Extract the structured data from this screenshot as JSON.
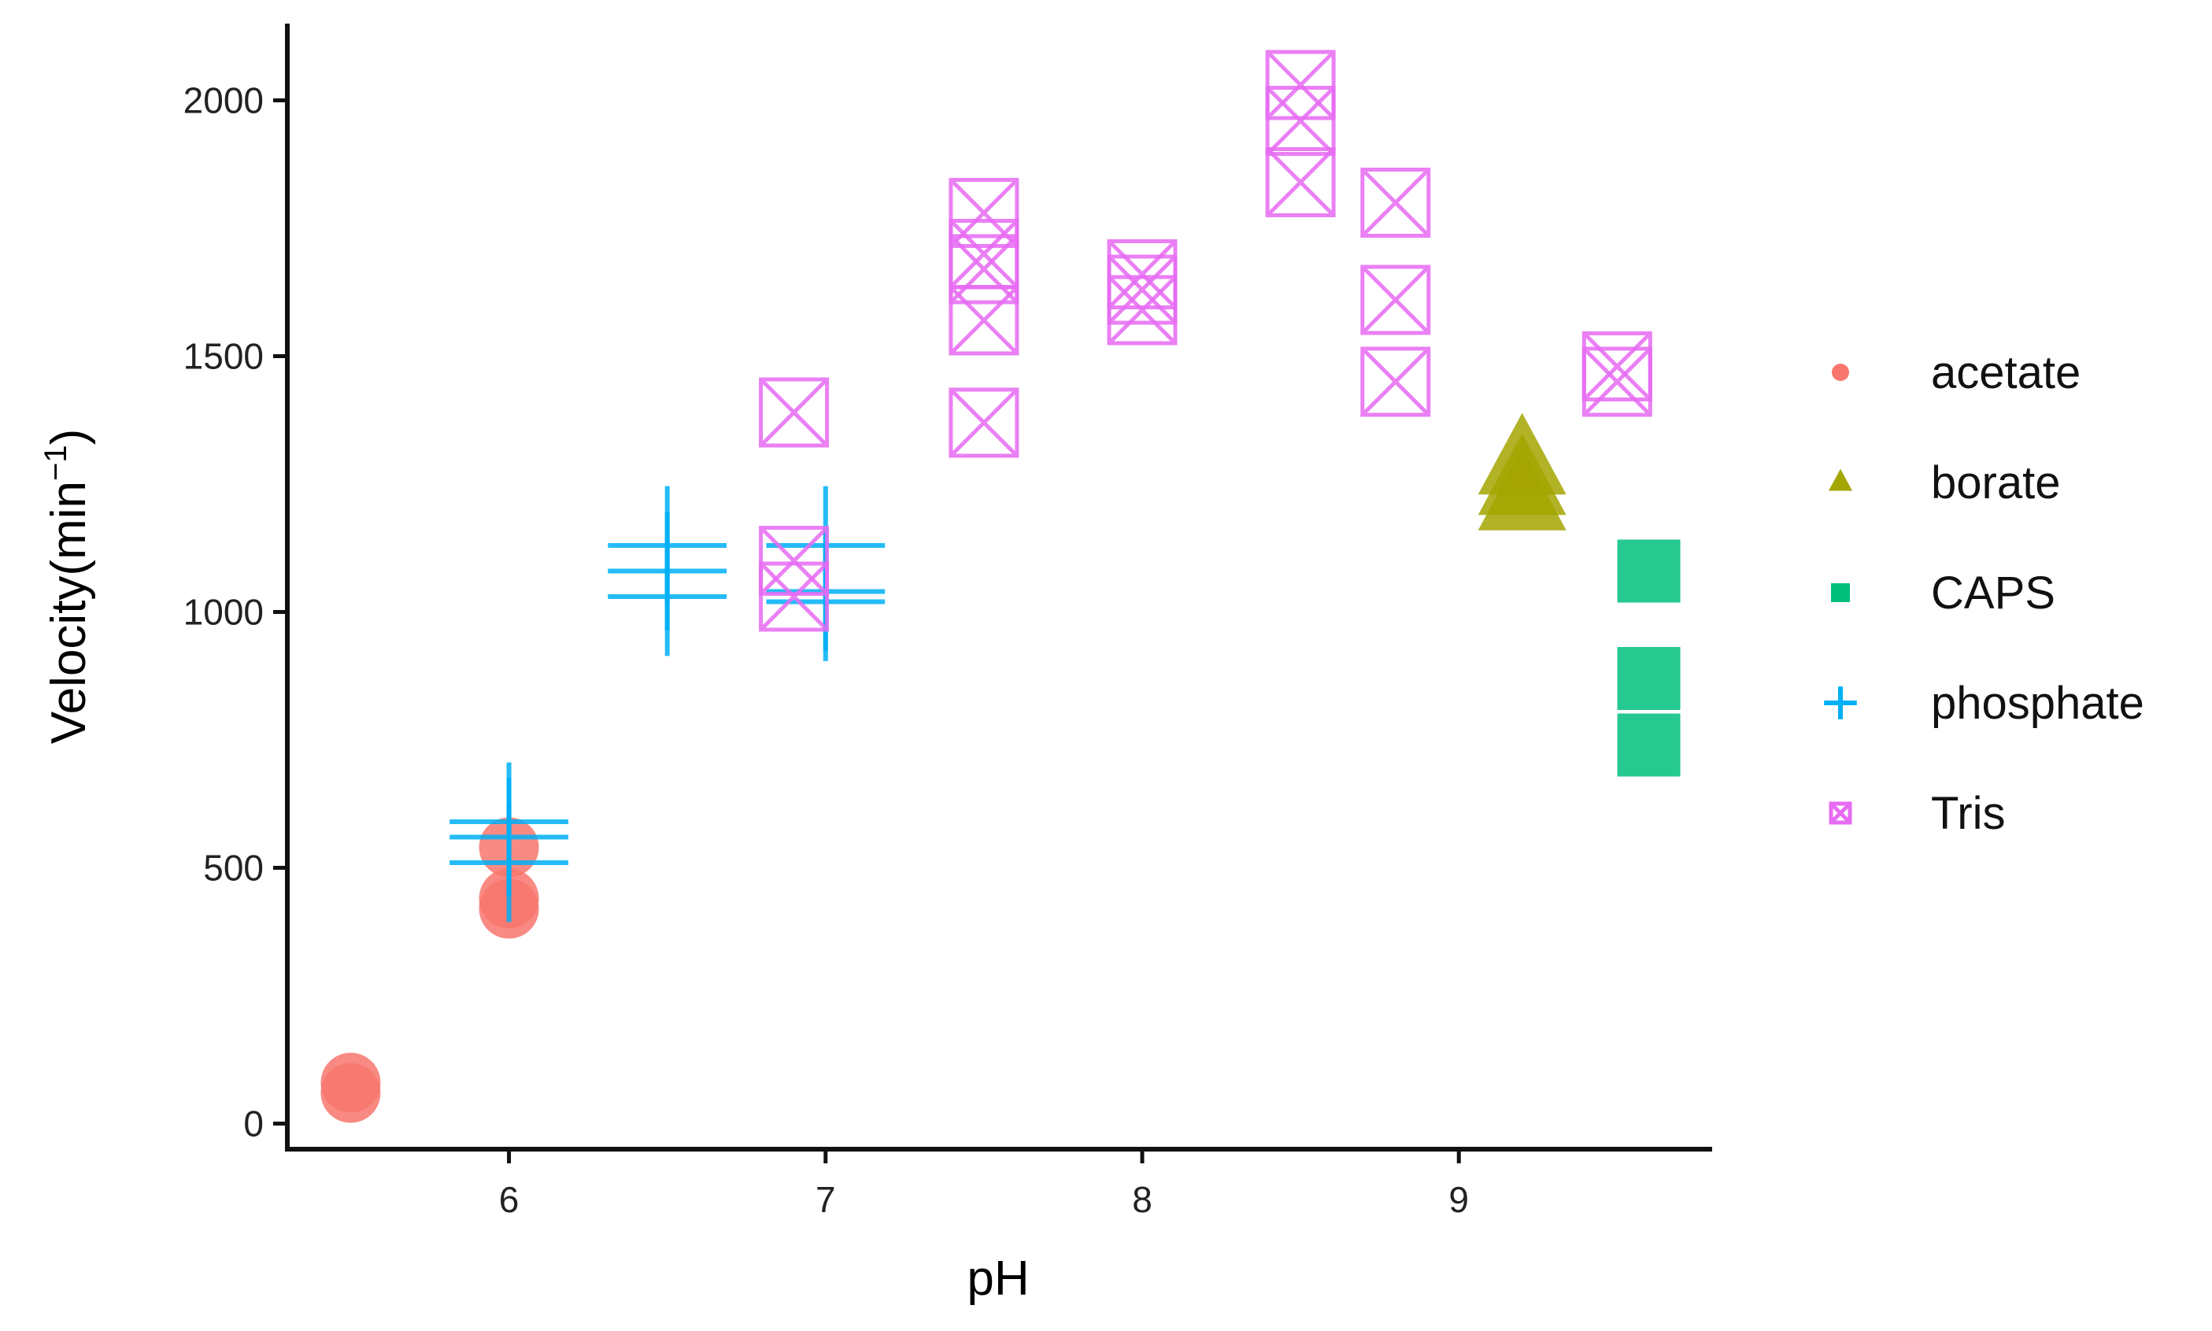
{
  "chart_data": {
    "type": "scatter",
    "xlabel": "pH",
    "ylabel": "Velocity",
    "ylabel_unit": "(min",
    "ylabel_sup": "−1",
    "ylabel_close": ")",
    "xlim": [
      5.3,
      9.8
    ],
    "ylim": [
      -50,
      2150
    ],
    "xticks": [
      6,
      7,
      8,
      9
    ],
    "yticks": [
      0,
      500,
      1000,
      1500,
      2000
    ],
    "grid": false,
    "legend_position": "right",
    "series": [
      {
        "name": "acetate",
        "marker": "circle",
        "color": "#F8766D",
        "points": [
          [
            5.5,
            80
          ],
          [
            5.5,
            60
          ],
          [
            6.0,
            540
          ],
          [
            6.0,
            440
          ],
          [
            6.0,
            420
          ]
        ]
      },
      {
        "name": "borate",
        "marker": "triangle",
        "color": "#A3A500",
        "points": [
          [
            9.2,
            1290
          ],
          [
            9.2,
            1250
          ],
          [
            9.2,
            1220
          ]
        ]
      },
      {
        "name": "CAPS",
        "marker": "square",
        "color": "#00BF7D",
        "points": [
          [
            9.6,
            1080
          ],
          [
            9.6,
            870
          ],
          [
            9.6,
            740
          ]
        ]
      },
      {
        "name": "phosphate",
        "marker": "plus",
        "color": "#00B0F6",
        "points": [
          [
            6.0,
            590
          ],
          [
            6.0,
            560
          ],
          [
            6.0,
            510
          ],
          [
            6.5,
            1130
          ],
          [
            6.5,
            1080
          ],
          [
            6.5,
            1030
          ],
          [
            7.0,
            1130
          ],
          [
            7.0,
            1040
          ],
          [
            7.0,
            1020
          ]
        ]
      },
      {
        "name": "Tris",
        "marker": "boxcross",
        "color": "#E76BF3",
        "points": [
          [
            6.9,
            1390
          ],
          [
            6.9,
            1100
          ],
          [
            6.9,
            1030
          ],
          [
            7.5,
            1780
          ],
          [
            7.5,
            1700
          ],
          [
            7.5,
            1670
          ],
          [
            7.5,
            1570
          ],
          [
            7.5,
            1370
          ],
          [
            8.0,
            1660
          ],
          [
            8.0,
            1630
          ],
          [
            8.0,
            1590
          ],
          [
            8.5,
            2030
          ],
          [
            8.5,
            1960
          ],
          [
            8.5,
            1840
          ],
          [
            8.8,
            1800
          ],
          [
            8.8,
            1610
          ],
          [
            8.8,
            1450
          ],
          [
            9.5,
            1480
          ],
          [
            9.5,
            1450
          ]
        ]
      }
    ]
  }
}
